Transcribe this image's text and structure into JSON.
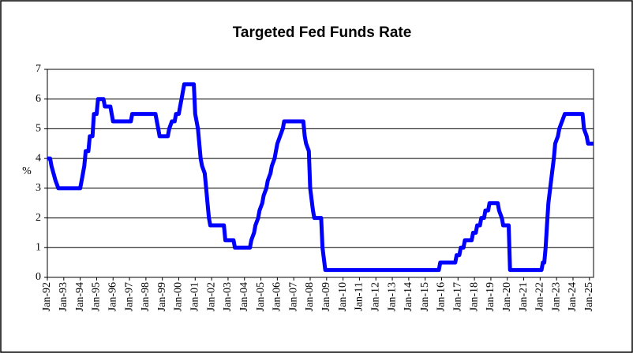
{
  "chart_data": {
    "type": "line",
    "title": "Targeted Fed Funds Rate",
    "y_label": "%",
    "color": "#0000ff",
    "grid": true,
    "xlim": [
      "1992-01",
      "2025-04"
    ],
    "ylim": [
      0,
      7
    ],
    "yticks": [
      0,
      1,
      2,
      3,
      4,
      5,
      6,
      7
    ],
    "xticks": [
      {
        "value": "1992-01",
        "label": "Jan-92"
      },
      {
        "value": "1993-01",
        "label": "Jan-93"
      },
      {
        "value": "1994-01",
        "label": "Jan-94"
      },
      {
        "value": "1995-01",
        "label": "Jan-95"
      },
      {
        "value": "1996-01",
        "label": "Jan-96"
      },
      {
        "value": "1997-01",
        "label": "Jan-97"
      },
      {
        "value": "1998-01",
        "label": "Jan-98"
      },
      {
        "value": "1999-01",
        "label": "Jan-99"
      },
      {
        "value": "2000-01",
        "label": "Jan-00"
      },
      {
        "value": "2001-01",
        "label": "Jan-01"
      },
      {
        "value": "2002-01",
        "label": "Jan-02"
      },
      {
        "value": "2003-01",
        "label": "Jan-03"
      },
      {
        "value": "2004-01",
        "label": "Jan-04"
      },
      {
        "value": "2005-01",
        "label": "Jan-05"
      },
      {
        "value": "2006-01",
        "label": "Jan-06"
      },
      {
        "value": "2007-01",
        "label": "Jan-07"
      },
      {
        "value": "2008-01",
        "label": "Jan-08"
      },
      {
        "value": "2009-01",
        "label": "Jan-09"
      },
      {
        "value": "2010-01",
        "label": "Jan-10"
      },
      {
        "value": "2011-01",
        "label": "Jan-11"
      },
      {
        "value": "2012-01",
        "label": "Jan-12"
      },
      {
        "value": "2013-01",
        "label": "Jan-13"
      },
      {
        "value": "2014-01",
        "label": "Jan-14"
      },
      {
        "value": "2015-01",
        "label": "Jan-15"
      },
      {
        "value": "2016-01",
        "label": "Jan-16"
      },
      {
        "value": "2017-01",
        "label": "Jan-17"
      },
      {
        "value": "2018-01",
        "label": "Jan-18"
      },
      {
        "value": "2019-01",
        "label": "Jan-19"
      },
      {
        "value": "2020-01",
        "label": "Jan-20"
      },
      {
        "value": "2021-01",
        "label": "Jan-21"
      },
      {
        "value": "2022-01",
        "label": "Jan-22"
      },
      {
        "value": "2023-01",
        "label": "Jan-23"
      },
      {
        "value": "2024-01",
        "label": "Jan-24"
      },
      {
        "value": "2025-01",
        "label": "Jan-25"
      }
    ],
    "x": [
      "1992-01",
      "1992-03",
      "1992-04",
      "1992-07",
      "1992-09",
      "1994-01",
      "1994-02",
      "1994-03",
      "1994-04",
      "1994-05",
      "1994-07",
      "1994-08",
      "1994-10",
      "1994-11",
      "1995-01",
      "1995-02",
      "1995-06",
      "1995-07",
      "1995-11",
      "1995-12",
      "1996-01",
      "1997-02",
      "1997-03",
      "1998-08",
      "1998-09",
      "1998-10",
      "1998-11",
      "1999-05",
      "1999-06",
      "1999-08",
      "1999-10",
      "1999-11",
      "2000-01",
      "2000-02",
      "2000-03",
      "2000-05",
      "2000-12",
      "2001-01",
      "2001-03",
      "2001-04",
      "2001-05",
      "2001-06",
      "2001-08",
      "2001-09",
      "2001-10",
      "2001-11",
      "2001-12",
      "2002-10",
      "2002-11",
      "2003-05",
      "2003-06",
      "2004-05",
      "2004-06",
      "2004-08",
      "2004-09",
      "2004-11",
      "2004-12",
      "2005-02",
      "2005-03",
      "2005-05",
      "2005-06",
      "2005-08",
      "2005-09",
      "2005-11",
      "2005-12",
      "2006-01",
      "2006-03",
      "2006-05",
      "2006-06",
      "2007-08",
      "2007-09",
      "2007-10",
      "2007-12",
      "2008-01",
      "2008-03",
      "2008-04",
      "2008-09",
      "2008-10",
      "2008-12",
      "2015-11",
      "2015-12",
      "2016-11",
      "2016-12",
      "2017-02",
      "2017-03",
      "2017-05",
      "2017-06",
      "2017-11",
      "2017-12",
      "2018-02",
      "2018-03",
      "2018-05",
      "2018-06",
      "2018-08",
      "2018-09",
      "2018-11",
      "2018-12",
      "2019-06",
      "2019-07",
      "2019-09",
      "2019-10",
      "2020-02",
      "2020-03",
      "2022-02",
      "2022-03",
      "2022-04",
      "2022-05",
      "2022-06",
      "2022-07",
      "2022-09",
      "2022-11",
      "2022-12",
      "2023-02",
      "2023-03",
      "2023-05",
      "2023-07",
      "2024-08",
      "2024-09",
      "2024-11",
      "2024-12",
      "2025-04"
    ],
    "values": [
      4.0,
      4.0,
      3.75,
      3.25,
      3.0,
      3.0,
      3.25,
      3.5,
      3.75,
      4.25,
      4.25,
      4.75,
      4.75,
      5.5,
      5.5,
      6.0,
      6.0,
      5.75,
      5.75,
      5.5,
      5.25,
      5.25,
      5.5,
      5.5,
      5.25,
      5.0,
      4.75,
      4.75,
      5.0,
      5.25,
      5.25,
      5.5,
      5.5,
      5.75,
      6.0,
      6.5,
      6.5,
      5.5,
      5.0,
      4.5,
      4.0,
      3.75,
      3.5,
      3.0,
      2.5,
      2.0,
      1.75,
      1.75,
      1.25,
      1.25,
      1.0,
      1.0,
      1.25,
      1.5,
      1.75,
      2.0,
      2.25,
      2.5,
      2.75,
      3.0,
      3.25,
      3.5,
      3.75,
      4.0,
      4.25,
      4.5,
      4.75,
      5.0,
      5.25,
      5.25,
      4.75,
      4.5,
      4.25,
      3.0,
      2.25,
      2.0,
      2.0,
      1.0,
      0.25,
      0.25,
      0.5,
      0.5,
      0.75,
      0.75,
      1.0,
      1.0,
      1.25,
      1.25,
      1.5,
      1.5,
      1.75,
      1.75,
      2.0,
      2.0,
      2.25,
      2.25,
      2.5,
      2.5,
      2.25,
      2.0,
      1.75,
      1.75,
      0.25,
      0.25,
      0.5,
      0.5,
      1.0,
      1.75,
      2.5,
      3.25,
      4.0,
      4.5,
      4.75,
      5.0,
      5.25,
      5.5,
      5.5,
      5.0,
      4.75,
      4.5,
      4.5
    ]
  }
}
